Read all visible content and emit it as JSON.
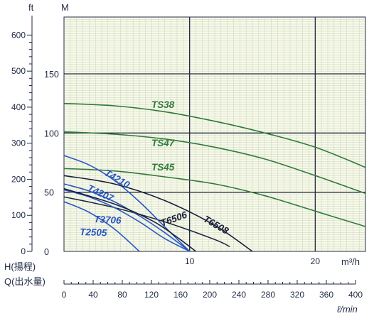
{
  "chart_data": {
    "type": "line",
    "title": "",
    "units": {
      "ft": "ft",
      "m": "M",
      "flow_m3h": "m³/h",
      "flow_lmin": "ℓ/min"
    },
    "ylabel": "H(揚程)",
    "xlabel": "Q(出水量)",
    "yaxis_ft": {
      "ticks": [
        "0",
        "100",
        "200",
        "300",
        "400",
        "500",
        "600"
      ],
      "range": [
        0,
        650
      ]
    },
    "yaxis_m": {
      "ticks": [
        "0",
        "50",
        "100",
        "150"
      ],
      "range": [
        0,
        198
      ]
    },
    "xaxis_m3h": {
      "ticks": [
        "10",
        "20"
      ],
      "range": [
        0,
        24
      ]
    },
    "xaxis_lmin": {
      "ticks": [
        "0",
        "40",
        "80",
        "120",
        "160",
        "200",
        "240",
        "280",
        "320",
        "360",
        "400"
      ],
      "range": [
        0,
        400
      ]
    },
    "grid": true,
    "series": [
      {
        "name": "TS38",
        "color": "#2f7a3a",
        "x": [
          0,
          4,
          8,
          12,
          16,
          20,
          24
        ],
        "y": [
          125,
          123,
          118,
          110,
          100,
          88,
          71
        ]
      },
      {
        "name": "TS47",
        "color": "#2f7a3a",
        "x": [
          0,
          4,
          8,
          12,
          16,
          20,
          24
        ],
        "y": [
          101,
          99,
          95,
          88,
          78,
          64,
          49
        ]
      },
      {
        "name": "TS45",
        "color": "#2f7a3a",
        "x": [
          0,
          4,
          8,
          12,
          16,
          20,
          24
        ],
        "y": [
          70,
          68,
          63,
          57,
          47,
          34,
          21
        ]
      },
      {
        "name": "T4210",
        "color": "#2957c7",
        "x": [
          0,
          2,
          4,
          6,
          8,
          10
        ],
        "y": [
          81,
          73,
          60,
          42,
          21,
          0
        ]
      },
      {
        "name": "T4207",
        "color": "#2957c7",
        "x": [
          0,
          2,
          4,
          6,
          8,
          10
        ],
        "y": [
          57,
          51,
          42,
          30,
          16,
          0
        ]
      },
      {
        "name": "T3706",
        "color": "#2957c7",
        "x": [
          0,
          2,
          4,
          6,
          8,
          10
        ],
        "y": [
          52,
          46,
          37,
          25,
          11,
          0
        ]
      },
      {
        "name": "T2505",
        "color": "#2957c7",
        "x": [
          0,
          2,
          4,
          6
        ],
        "y": [
          42,
          33,
          19,
          0
        ]
      },
      {
        "name": "T6506",
        "color": "#1a1f3a",
        "x": [
          0,
          4,
          7,
          9,
          10.5
        ],
        "y": [
          53,
          40,
          26,
          12,
          0
        ]
      },
      {
        "name": "T6508",
        "color": "#1a1f3a",
        "x": [
          0,
          4,
          8,
          12,
          15
        ],
        "y": [
          64,
          57,
          43,
          22,
          0
        ]
      }
    ],
    "extra_curves": [
      {
        "color": "#1a1f3a",
        "x": [
          0,
          4,
          8,
          12,
          13.2
        ],
        "y": [
          46,
          37,
          25,
          10,
          4
        ]
      }
    ]
  }
}
